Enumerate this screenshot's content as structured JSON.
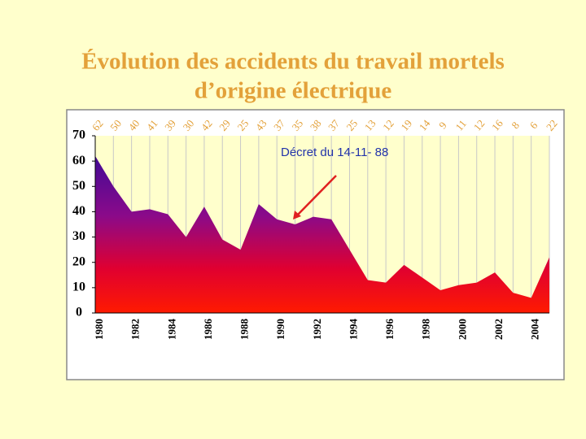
{
  "chart_data": {
    "type": "area",
    "title": [
      "Évolution des accidents du travail mortels",
      "d’origine électrique"
    ],
    "categories": [
      "1980",
      null,
      "1982",
      null,
      "1984",
      null,
      "1986",
      null,
      "1988",
      null,
      "1990",
      null,
      "1992",
      null,
      "1994",
      null,
      "1996",
      null,
      "1998",
      null,
      "2000",
      null,
      "2002",
      null,
      "2004",
      null
    ],
    "values": [
      62,
      50,
      40,
      41,
      39,
      30,
      42,
      29,
      25,
      43,
      37,
      35,
      38,
      37,
      25,
      13,
      12,
      19,
      14,
      9,
      11,
      12,
      16,
      8,
      6,
      22
    ],
    "ylim": [
      0,
      70
    ],
    "yticks": [
      0,
      10,
      20,
      30,
      40,
      50,
      60,
      70
    ],
    "annotations": [
      {
        "text": "Décret du 14-11- 88"
      }
    ]
  }
}
